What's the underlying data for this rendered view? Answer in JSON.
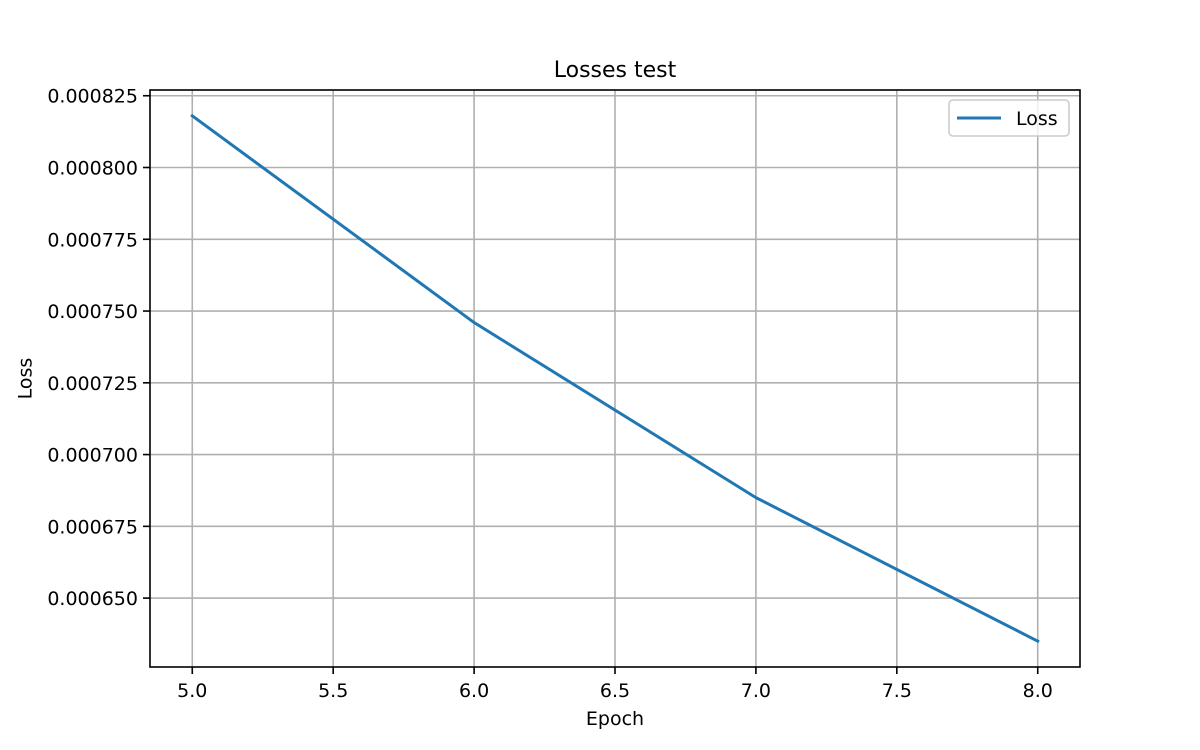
{
  "chart_data": {
    "type": "line",
    "title": "Losses test",
    "xlabel": "Epoch",
    "ylabel": "Loss",
    "x": [
      5,
      6,
      7,
      8
    ],
    "series": [
      {
        "name": "Loss",
        "color": "#1f77b4",
        "values": [
          0.000818,
          0.000746,
          0.000685,
          0.000635
        ]
      }
    ],
    "xlim": [
      4.85,
      8.15
    ],
    "ylim": [
      0.000626,
      0.000827
    ],
    "xticks": [
      5.0,
      5.5,
      6.0,
      6.5,
      7.0,
      7.5,
      8.0
    ],
    "xtick_labels": [
      "5.0",
      "5.5",
      "6.0",
      "6.5",
      "7.0",
      "7.5",
      "8.0"
    ],
    "yticks": [
      0.00065,
      0.000675,
      0.0007,
      0.000725,
      0.00075,
      0.000775,
      0.0008,
      0.000825
    ],
    "ytick_labels": [
      "0.000650",
      "0.000675",
      "0.000700",
      "0.000725",
      "0.000750",
      "0.000775",
      "0.000800",
      "0.000825"
    ],
    "grid": true,
    "legend_position": "upper right"
  }
}
